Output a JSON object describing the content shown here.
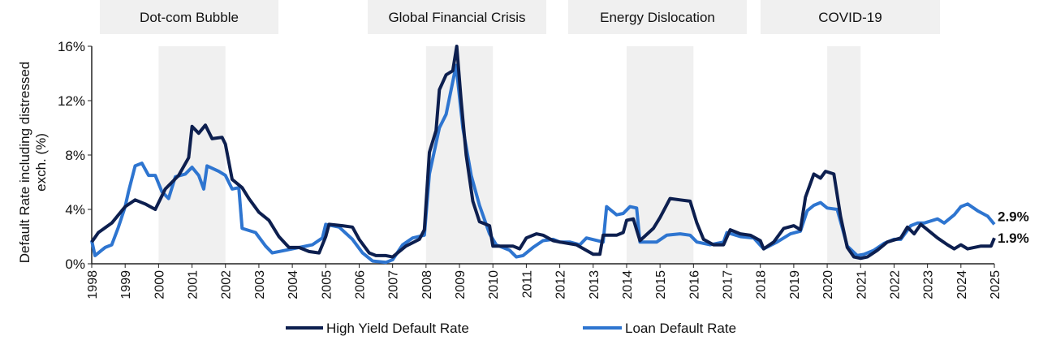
{
  "chart_data": {
    "type": "line",
    "title": "",
    "xlabel": "",
    "ylabel": "Default Rate including distressed exch. (%)",
    "ylabel_lines": [
      "Default Rate including distressed",
      "exch. (%)"
    ],
    "xlim": [
      1998,
      2025
    ],
    "ylim": [
      0,
      16
    ],
    "y_ticks": [
      0,
      4,
      8,
      12,
      16
    ],
    "y_tick_labels": [
      "0%",
      "4%",
      "8%",
      "12%",
      "16%"
    ],
    "x_ticks": [
      1998,
      1999,
      2000,
      2001,
      2002,
      2003,
      2004,
      2005,
      2006,
      2007,
      2008,
      2009,
      2010,
      2011,
      2012,
      2013,
      2014,
      2015,
      2016,
      2017,
      2018,
      2019,
      2020,
      2021,
      2022,
      2023,
      2024,
      2025
    ],
    "x_tick_labels": [
      "1998",
      "1999",
      "2000",
      "2001",
      "2002",
      "2003",
      "2004",
      "2005",
      "2006",
      "2007",
      "2008",
      "2009",
      "2010",
      "2011",
      "2012",
      "2013",
      "2014",
      "2015",
      "2016",
      "2017",
      "2018",
      "2019",
      "2020",
      "2021",
      "2022",
      "2023",
      "2024",
      "2025"
    ],
    "grid": false,
    "legend_position": "bottom",
    "shaded_periods": [
      {
        "label": "Dot-com Bubble",
        "start": 2000,
        "end": 2002
      },
      {
        "label": "Global Financial Crisis",
        "start": 2008,
        "end": 2010
      },
      {
        "label": "Energy Dislocation",
        "start": 2014,
        "end": 2016
      },
      {
        "label": "COVID-19",
        "start": 2020,
        "end": 2021
      }
    ],
    "series": [
      {
        "name": "High Yield Default Rate",
        "color": "#0d1f4f",
        "end_label": "1.9%",
        "x": [
          1998.0,
          1998.2,
          1998.6,
          1999.0,
          1999.3,
          1999.6,
          1999.9,
          2000.2,
          2000.6,
          2000.9,
          2001.0,
          2001.2,
          2001.4,
          2001.6,
          2001.9,
          2002.0,
          2002.2,
          2002.5,
          2002.7,
          2003.0,
          2003.3,
          2003.6,
          2003.9,
          2004.2,
          2004.5,
          2004.8,
          2005.0,
          2005.1,
          2005.5,
          2005.8,
          2006.0,
          2006.3,
          2006.5,
          2006.8,
          2007.0,
          2007.4,
          2007.8,
          2007.95,
          2008.1,
          2008.3,
          2008.4,
          2008.6,
          2008.8,
          2008.92,
          2009.05,
          2009.2,
          2009.4,
          2009.6,
          2009.9,
          2010.0,
          2010.3,
          2010.6,
          2010.8,
          2011.0,
          2011.3,
          2011.5,
          2011.8,
          2012.0,
          2012.5,
          2013.0,
          2013.2,
          2013.3,
          2013.7,
          2013.9,
          2014.0,
          2014.2,
          2014.4,
          2014.8,
          2015.0,
          2015.3,
          2015.6,
          2015.9,
          2016.1,
          2016.3,
          2016.6,
          2016.9,
          2017.1,
          2017.4,
          2017.7,
          2018.0,
          2018.1,
          2018.4,
          2018.7,
          2019.0,
          2019.2,
          2019.35,
          2019.6,
          2019.8,
          2019.95,
          2020.2,
          2020.4,
          2020.6,
          2020.8,
          2021.0,
          2021.2,
          2021.5,
          2021.8,
          2022.2,
          2022.4,
          2022.6,
          2022.8,
          2023.0,
          2023.3,
          2023.6,
          2023.8,
          2024.0,
          2024.2,
          2024.6,
          2024.9,
          2025.0
        ],
        "y": [
          1.6,
          2.3,
          3.0,
          4.2,
          4.7,
          4.4,
          4.0,
          5.5,
          6.5,
          7.8,
          10.1,
          9.6,
          10.2,
          9.2,
          9.3,
          8.8,
          6.2,
          5.6,
          4.8,
          3.8,
          3.2,
          2.0,
          1.2,
          1.2,
          0.9,
          0.8,
          2.0,
          2.9,
          2.8,
          2.7,
          1.8,
          0.8,
          0.6,
          0.6,
          0.5,
          1.3,
          1.8,
          2.5,
          8.2,
          9.8,
          12.8,
          13.9,
          14.2,
          16.0,
          12.0,
          8.0,
          4.6,
          3.1,
          2.8,
          1.3,
          1.3,
          1.3,
          1.1,
          1.9,
          2.2,
          2.1,
          1.7,
          1.6,
          1.4,
          0.7,
          0.7,
          2.1,
          2.1,
          2.3,
          3.2,
          3.3,
          1.7,
          2.6,
          3.4,
          4.8,
          4.7,
          4.6,
          3.0,
          1.8,
          1.4,
          1.4,
          2.5,
          2.2,
          2.1,
          1.7,
          1.1,
          1.6,
          2.6,
          2.8,
          2.5,
          4.9,
          6.6,
          6.3,
          6.8,
          6.6,
          3.5,
          1.2,
          0.5,
          0.4,
          0.5,
          1.0,
          1.6,
          1.9,
          2.7,
          2.2,
          2.9,
          2.5,
          1.9,
          1.4,
          1.1,
          1.4,
          1.1,
          1.3,
          1.3,
          1.9
        ]
      },
      {
        "name": "Loan Default Rate",
        "color": "#2e75d0",
        "end_label": "2.9%",
        "x": [
          1998.0,
          1998.1,
          1998.4,
          1998.6,
          1998.8,
          1999.0,
          1999.1,
          1999.3,
          1999.5,
          1999.7,
          1999.9,
          2000.1,
          2000.3,
          2000.5,
          2000.8,
          2001.0,
          2001.2,
          2001.35,
          2001.45,
          2001.8,
          2002.0,
          2002.2,
          2002.4,
          2002.5,
          2002.9,
          2003.2,
          2003.4,
          2003.8,
          2004.2,
          2004.6,
          2004.9,
          2005.0,
          2005.4,
          2005.8,
          2006.1,
          2006.4,
          2006.8,
          2007.0,
          2007.3,
          2007.6,
          2007.95,
          2008.1,
          2008.4,
          2008.6,
          2008.9,
          2009.1,
          2009.35,
          2009.6,
          2009.9,
          2010.1,
          2010.5,
          2010.7,
          2010.9,
          2011.2,
          2011.5,
          2011.8,
          2012.0,
          2012.3,
          2012.6,
          2012.8,
          2013.3,
          2013.4,
          2013.7,
          2013.9,
          2014.1,
          2014.3,
          2014.4,
          2014.9,
          2015.2,
          2015.6,
          2015.9,
          2016.1,
          2016.5,
          2016.9,
          2017.0,
          2017.4,
          2017.8,
          2018.1,
          2018.5,
          2018.9,
          2019.2,
          2019.4,
          2019.6,
          2019.8,
          2020.0,
          2020.3,
          2020.6,
          2020.9,
          2021.1,
          2021.4,
          2021.7,
          2022.0,
          2022.2,
          2022.5,
          2022.7,
          2022.9,
          2023.3,
          2023.5,
          2023.8,
          2024.0,
          2024.2,
          2024.5,
          2024.8,
          2025.0
        ],
        "y": [
          1.7,
          0.6,
          1.2,
          1.4,
          2.7,
          4.2,
          5.3,
          7.2,
          7.4,
          6.5,
          6.5,
          5.3,
          4.8,
          6.4,
          6.6,
          7.1,
          6.5,
          5.5,
          7.2,
          6.8,
          6.5,
          5.5,
          5.6,
          2.6,
          2.3,
          1.3,
          0.8,
          1.0,
          1.2,
          1.4,
          1.9,
          2.9,
          2.7,
          1.8,
          0.8,
          0.2,
          0.1,
          0.3,
          1.4,
          1.9,
          2.1,
          6.6,
          10.0,
          11.0,
          14.6,
          10.0,
          6.5,
          4.3,
          2.2,
          1.4,
          1.0,
          0.5,
          0.6,
          1.2,
          1.7,
          1.8,
          1.6,
          1.6,
          1.4,
          1.9,
          1.6,
          4.2,
          3.6,
          3.7,
          4.2,
          4.1,
          1.6,
          1.6,
          2.1,
          2.2,
          2.1,
          1.6,
          1.4,
          1.6,
          2.3,
          2.0,
          1.9,
          1.1,
          1.6,
          2.2,
          2.4,
          3.9,
          4.3,
          4.5,
          4.1,
          4.0,
          1.3,
          0.6,
          0.7,
          1.0,
          1.5,
          1.8,
          1.8,
          2.8,
          3.0,
          3.0,
          3.3,
          3.0,
          3.6,
          4.2,
          4.4,
          3.9,
          3.5,
          2.9
        ]
      }
    ]
  }
}
